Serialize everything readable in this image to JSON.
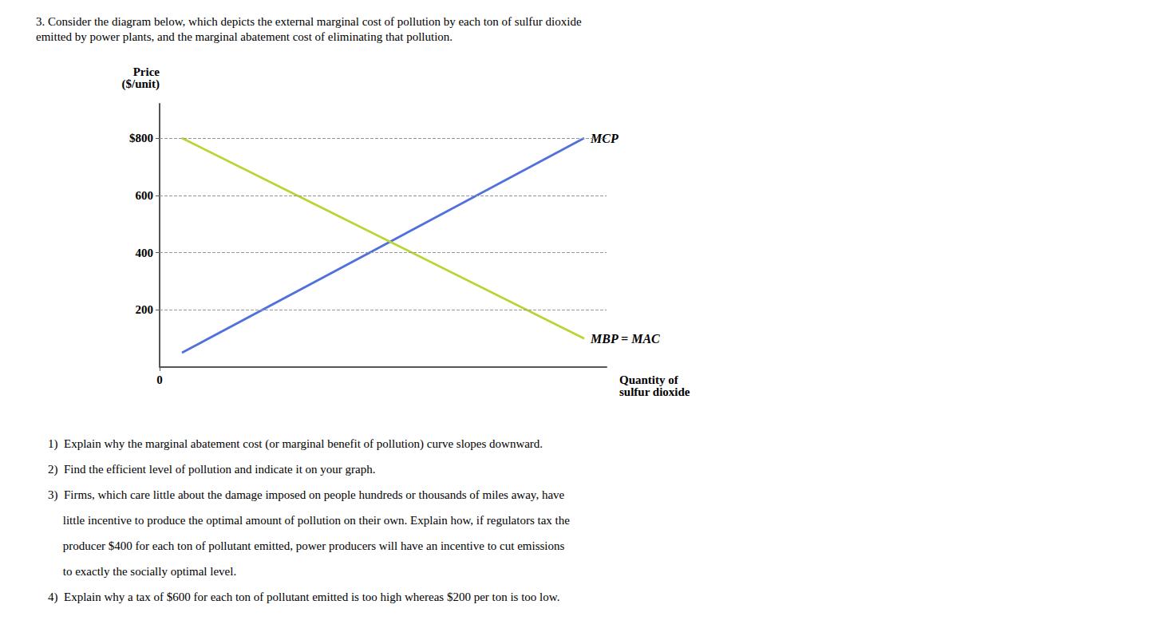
{
  "chart_data": {
    "type": "line",
    "title": "3. Consider the diagram below, which depicts the external marginal cost of pollution by each ton of sulfur dioxide",
    "subtitle": "emitted by power plants, and the marginal abatement cost of eliminating that pollution.",
    "ylabel": "Price\n($/unit)",
    "xlabel": "Quantity of\nsulfur dioxide",
    "x": [
      0.5,
      9.5
    ],
    "series": [
      {
        "name": "MCP",
        "values": [
          50,
          800
        ]
      },
      {
        "name": "MBP = MAC",
        "values": [
          800,
          100
        ]
      }
    ],
    "xlim": [
      0,
      10
    ],
    "xticks": [
      0
    ],
    "ylim": [
      0,
      920
    ],
    "yticks": [
      200,
      400,
      600,
      {
        "value": 800,
        "label": "$800"
      }
    ],
    "grid": true,
    "legend": false,
    "annotations": [
      "1)  Explain why the marginal abatement cost (or marginal benefit of pollution) curve slopes downward.",
      "2)  Find the efficient level of pollution and indicate it on your graph.",
      "3)  Firms, which care little about the damage imposed on people hundreds or thousands of miles away, have",
      "     little incentive to produce the optimal amount of pollution on their own. Explain how, if regulators tax the",
      "     producer $400 for each ton of pollutant emitted, power producers will have an incentive to cut emissions",
      "     to exactly the socially optimal level.",
      "4)  Explain why a tax of $600 for each ton of pollutant emitted is too high whereas $200 per ton is too low."
    ]
  }
}
